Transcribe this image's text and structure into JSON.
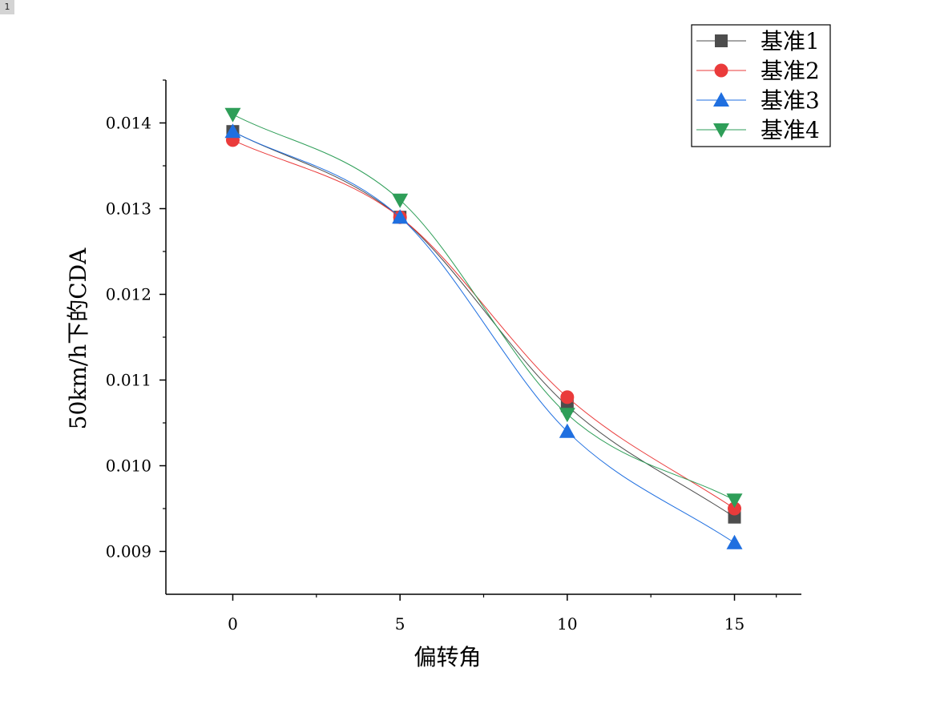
{
  "page_badge": "1",
  "chart_data": {
    "type": "line",
    "title": "",
    "xlabel": "偏转角",
    "ylabel": "50km/h下的CDA",
    "x": [
      0,
      5,
      10,
      15
    ],
    "xlim": [
      -2,
      17
    ],
    "ylim": [
      0.0085,
      0.0145
    ],
    "xticks": [
      0,
      5,
      10,
      15
    ],
    "xtick_labels": [
      "0",
      "5",
      "10",
      "15"
    ],
    "yticks": [
      0.009,
      0.01,
      0.011,
      0.012,
      0.013,
      0.014
    ],
    "ytick_labels": [
      "0.009",
      "0.010",
      "0.011",
      "0.012",
      "0.013",
      "0.014"
    ],
    "grid": false,
    "legend_position": "top-right",
    "series": [
      {
        "name": "基准1",
        "values": [
          0.0139,
          0.0129,
          0.0107,
          0.0094
        ],
        "color": "#4d4d4d",
        "marker": "square"
      },
      {
        "name": "基准2",
        "values": [
          0.0138,
          0.0129,
          0.0108,
          0.0095
        ],
        "color": "#ea3b3b",
        "marker": "circle"
      },
      {
        "name": "基准3",
        "values": [
          0.0139,
          0.0129,
          0.0104,
          0.0091
        ],
        "color": "#1f6fe0",
        "marker": "triangle-up"
      },
      {
        "name": "基准4",
        "values": [
          0.0141,
          0.0131,
          0.0106,
          0.0096
        ],
        "color": "#2e9e58",
        "marker": "triangle-down"
      }
    ]
  }
}
